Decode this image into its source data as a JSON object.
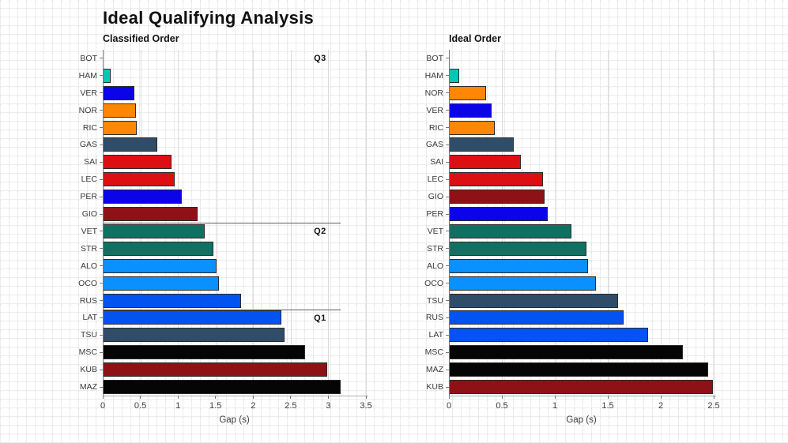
{
  "title": "Ideal Qualifying Analysis",
  "style": {
    "bar_edge_color": "#2b2b2b",
    "separator_color": "#5f5f5f",
    "gridline_color": "#dcdcdc",
    "team_colors": {
      "mercedes": "#00c8b4",
      "red_bull": "#0c04e8",
      "mclaren": "#ff8705",
      "alphatauri": "#2f4d68",
      "ferrari": "#dc0f13",
      "alfa_romeo": "#8e1215",
      "aston_martin": "#127063",
      "alpine": "#0a90ff",
      "williams": "#0353f0",
      "haas": "#050505"
    }
  },
  "chart_data": [
    {
      "type": "bar",
      "orientation": "horizontal",
      "title": "Classified Order",
      "xlabel": "Gap (s)",
      "xlim": [
        0,
        3.5
      ],
      "xticks": [
        0,
        0.5,
        1,
        1.5,
        2,
        2.5,
        3,
        3.5
      ],
      "xtick_labels": [
        "0",
        "0.5",
        "1",
        "1.5",
        "2",
        "2.5",
        "3",
        "3.5"
      ],
      "grid": true,
      "categories": [
        "BOT",
        "HAM",
        "VER",
        "NOR",
        "RIC",
        "GAS",
        "SAI",
        "LEC",
        "PER",
        "GIO",
        "VET",
        "STR",
        "ALO",
        "OCO",
        "RUS",
        "LAT",
        "TSU",
        "MSC",
        "KUB",
        "MAZ"
      ],
      "values": [
        0,
        0.1,
        0.42,
        0.44,
        0.45,
        0.72,
        0.91,
        0.96,
        1.05,
        1.26,
        1.36,
        1.47,
        1.51,
        1.55,
        1.84,
        2.38,
        2.42,
        2.69,
        2.98,
        3.16
      ],
      "colors": [
        "#00c8b4",
        "#00c8b4",
        "#0c04e8",
        "#ff8705",
        "#ff8705",
        "#2f4d68",
        "#dc0f13",
        "#dc0f13",
        "#0c04e8",
        "#8e1215",
        "#127063",
        "#127063",
        "#0a90ff",
        "#0a90ff",
        "#0353f0",
        "#0353f0",
        "#2f4d68",
        "#050505",
        "#8e1215",
        "#050505"
      ],
      "annotations": [
        {
          "label": "Q3",
          "row_index": 0,
          "line": false
        },
        {
          "label": "Q2",
          "row_index": 10,
          "line": true
        },
        {
          "label": "Q1",
          "row_index": 15,
          "line": true
        }
      ],
      "separator_span": 3.16,
      "annotation_x": 2.89
    },
    {
      "type": "bar",
      "orientation": "horizontal",
      "title": "Ideal Order",
      "xlabel": "Gap (s)",
      "xlim": [
        0,
        2.5
      ],
      "xticks": [
        0,
        0.5,
        1,
        1.5,
        2,
        2.5
      ],
      "xtick_labels": [
        "0",
        "0.5",
        "1",
        "1.5",
        "2",
        "2.5"
      ],
      "grid": true,
      "categories": [
        "BOT",
        "HAM",
        "NOR",
        "VER",
        "RIC",
        "GAS",
        "SAI",
        "LEC",
        "GIO",
        "PER",
        "VET",
        "STR",
        "ALO",
        "OCO",
        "TSU",
        "RUS",
        "LAT",
        "MSC",
        "MAZ",
        "KUB"
      ],
      "values": [
        0,
        0.1,
        0.35,
        0.4,
        0.43,
        0.61,
        0.68,
        0.89,
        0.9,
        0.93,
        1.16,
        1.3,
        1.31,
        1.39,
        1.6,
        1.65,
        1.88,
        2.21,
        2.45,
        2.49
      ],
      "colors": [
        "#00c8b4",
        "#00c8b4",
        "#ff8705",
        "#0c04e8",
        "#ff8705",
        "#2f4d68",
        "#dc0f13",
        "#dc0f13",
        "#8e1215",
        "#0c04e8",
        "#127063",
        "#127063",
        "#0a90ff",
        "#0a90ff",
        "#2f4d68",
        "#0353f0",
        "#0353f0",
        "#050505",
        "#050505",
        "#8e1215"
      ],
      "annotations": [],
      "separator_span": 0,
      "annotation_x": 0
    }
  ]
}
